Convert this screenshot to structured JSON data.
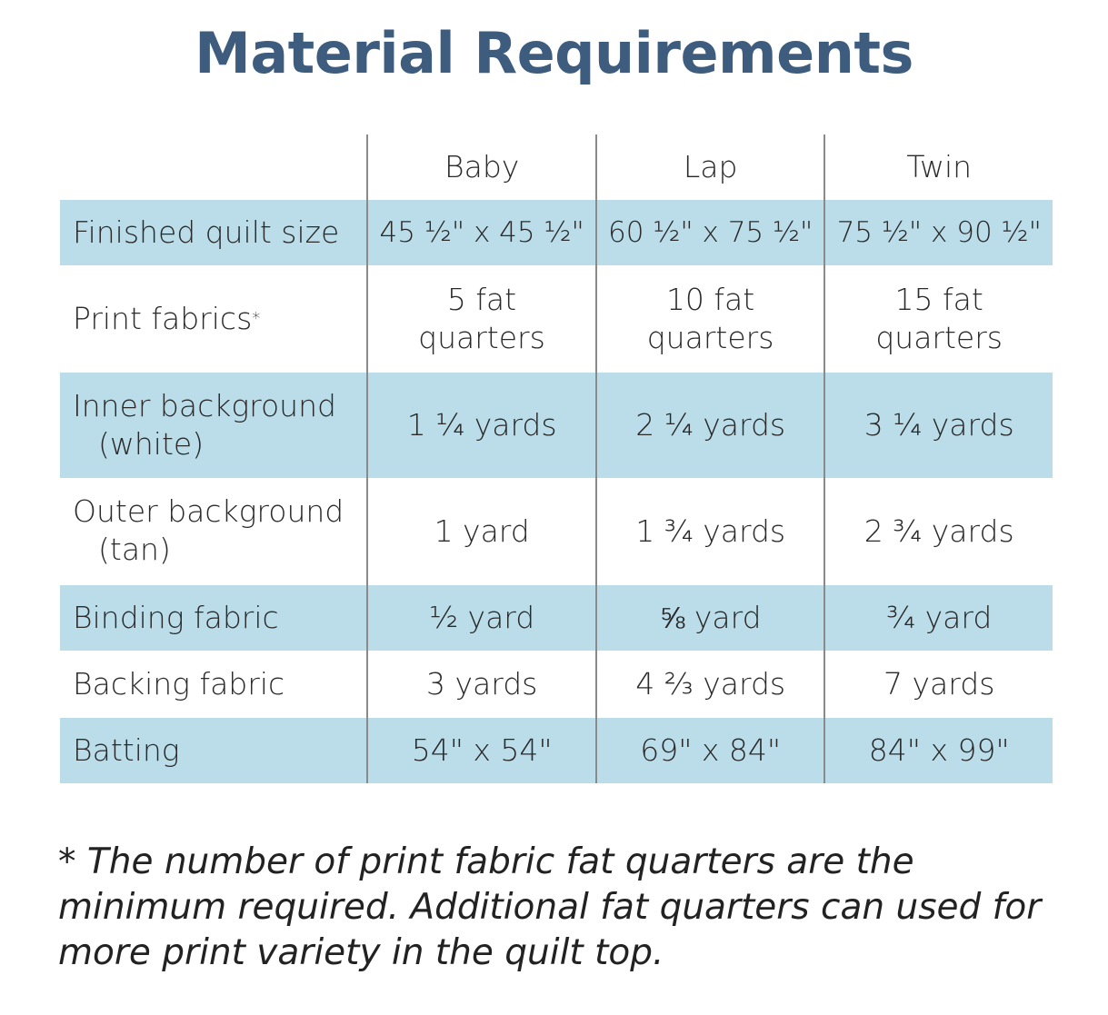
{
  "title": "Material Requirements",
  "columns": [
    "",
    "Baby",
    "Lap",
    "Twin"
  ],
  "rows": [
    {
      "label": "Finished quilt size",
      "label2": "",
      "values": [
        "45 ½\" x 45 ½\"",
        "60 ½\" x 75 ½\"",
        "75 ½\" x 90 ½\""
      ]
    },
    {
      "label": "Print fabrics",
      "label2": "",
      "marker": "*",
      "values": [
        "5 fat quarters",
        "10 fat quarters",
        "15 fat quarters"
      ]
    },
    {
      "label": "Inner background",
      "label2": "(white)",
      "values": [
        "1 ¼ yards",
        "2 ¼ yards",
        "3 ¼ yards"
      ]
    },
    {
      "label": "Outer background",
      "label2": "(tan)",
      "values": [
        "1 yard",
        "1 ¾ yards",
        "2 ¾ yards"
      ]
    },
    {
      "label": "Binding fabric",
      "label2": "",
      "values": [
        "½ yard",
        "⅝ yard",
        "¾ yard"
      ]
    },
    {
      "label": "Backing fabric",
      "label2": "",
      "values": [
        "3 yards",
        "4 ⅔ yards",
        "7 yards"
      ]
    },
    {
      "label": "Batting",
      "label2": "",
      "values": [
        "54\" x 54\"",
        "69\" x 84\"",
        "84\" x 99\""
      ]
    }
  ],
  "footnote": "* The number of print fabric fat quarters are the minimum required.  Additional fat quarters can used for more print variety in the quilt top.",
  "colors": {
    "title": "#3e5d7e",
    "row_highlight": "#badde9"
  }
}
